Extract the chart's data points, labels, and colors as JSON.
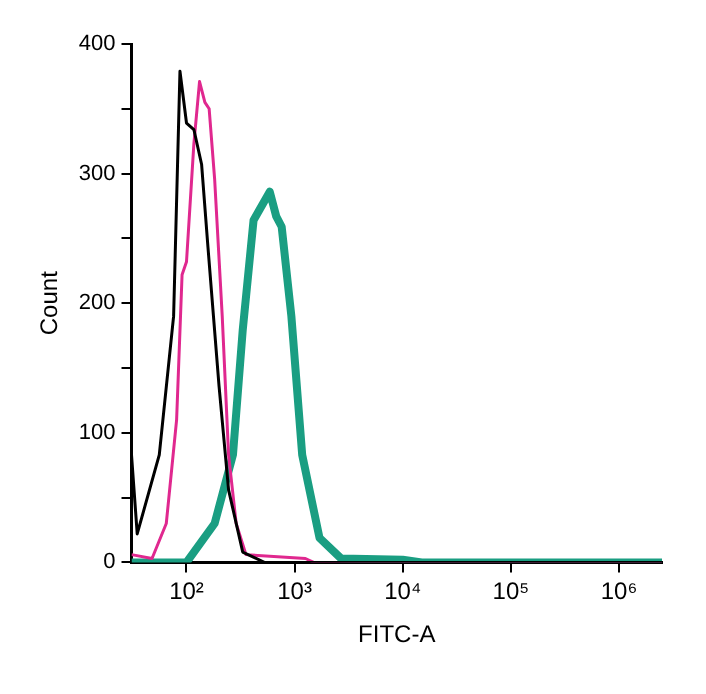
{
  "chart_data": {
    "type": "line",
    "xlabel": "FITC-A",
    "ylabel": "Count",
    "log": "x",
    "grid": false,
    "legend": false,
    "marker": "none",
    "line_style": "solid",
    "xlim": [
      31,
      2500000
    ],
    "ylim": [
      0,
      400
    ],
    "xticks": [
      {
        "value": 100,
        "label": "10²"
      },
      {
        "value": 1000,
        "label": "10³"
      },
      {
        "value": 10000,
        "label": "10⁴"
      },
      {
        "value": 100000,
        "label": "10⁵"
      },
      {
        "value": 1000000,
        "label": "10⁶"
      }
    ],
    "yticks": [
      0,
      {
        "value": 50,
        "label": null
      },
      100,
      {
        "value": 150,
        "label": null
      },
      200,
      {
        "value": 250,
        "label": null
      },
      300,
      {
        "value": 350,
        "label": null
      },
      400
    ],
    "series": [
      {
        "color": "#000000",
        "x": [
          31,
          35,
          56,
          76,
          87,
          100,
          117,
          138,
          158,
          200,
          245,
          331,
          525,
          2500000
        ],
        "values": [
          83,
          22,
          83,
          190,
          379,
          339,
          334,
          307,
          243,
          136,
          56,
          8,
          0,
          0
        ]
      },
      {
        "color": "#e0288f",
        "x": [
          31,
          48,
          65,
          81,
          91,
          100,
          117,
          132,
          148,
          162,
          182,
          214,
          245,
          288,
          355,
          1259,
          1500,
          2500000
        ],
        "values": [
          6,
          3,
          30,
          110,
          222,
          232,
          323,
          371,
          355,
          350,
          296,
          190,
          83,
          30,
          6,
          3,
          0,
          0
        ]
      },
      {
        "color": "#1a9e82",
        "x": [
          31,
          100,
          182,
          269,
          331,
          417,
          589,
          676,
          759,
          933,
          1175,
          1698,
          2692,
          10000,
          15000,
          2500000
        ],
        "values": [
          0,
          0,
          30,
          83,
          179,
          264,
          286,
          267,
          259,
          190,
          83,
          19,
          3,
          2,
          0,
          0
        ]
      }
    ]
  }
}
